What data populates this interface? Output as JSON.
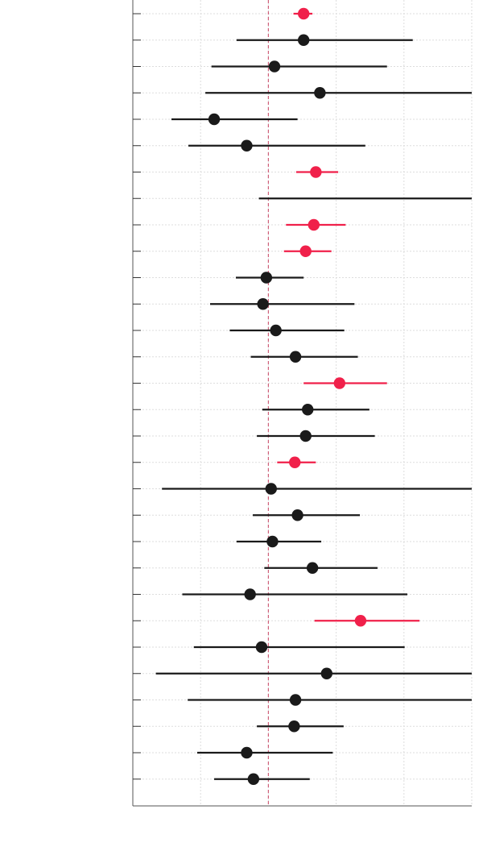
{
  "chart_data": {
    "type": "forest",
    "title": "",
    "xlabel": "",
    "ylabel": "",
    "reference_line": 0,
    "xlim": [
      -2.0,
      3.0
    ],
    "grid": true,
    "colors": {
      "significant": "#f0204a",
      "not_significant": "#1a1a1a",
      "reference": "#d0607a",
      "grid": "#dddddd",
      "axis": "#555555"
    },
    "rows": [
      {
        "estimate": 0.52,
        "lower": 0.37,
        "upper": 0.65,
        "significant": true
      },
      {
        "estimate": 0.52,
        "lower": -0.47,
        "upper": 2.13,
        "significant": false
      },
      {
        "estimate": 0.09,
        "lower": -0.84,
        "upper": 1.75,
        "significant": false
      },
      {
        "estimate": 0.76,
        "lower": -0.93,
        "upper": 3.0,
        "significant": false
      },
      {
        "estimate": -0.8,
        "lower": -1.43,
        "upper": 0.43,
        "significant": false
      },
      {
        "estimate": -0.32,
        "lower": -1.18,
        "upper": 1.43,
        "significant": false
      },
      {
        "estimate": 0.7,
        "lower": 0.41,
        "upper": 1.03,
        "significant": true
      },
      {
        "estimate": null,
        "lower": -0.14,
        "upper": 3.0,
        "significant": false
      },
      {
        "estimate": 0.67,
        "lower": 0.26,
        "upper": 1.14,
        "significant": true
      },
      {
        "estimate": 0.55,
        "lower": 0.23,
        "upper": 0.93,
        "significant": true
      },
      {
        "estimate": -0.03,
        "lower": -0.48,
        "upper": 0.52,
        "significant": false
      },
      {
        "estimate": -0.08,
        "lower": -0.86,
        "upper": 1.27,
        "significant": false
      },
      {
        "estimate": 0.11,
        "lower": -0.57,
        "upper": 1.12,
        "significant": false
      },
      {
        "estimate": 0.4,
        "lower": -0.26,
        "upper": 1.32,
        "significant": false
      },
      {
        "estimate": 1.05,
        "lower": 0.52,
        "upper": 1.75,
        "significant": true
      },
      {
        "estimate": 0.58,
        "lower": -0.09,
        "upper": 1.49,
        "significant": false
      },
      {
        "estimate": 0.55,
        "lower": -0.17,
        "upper": 1.57,
        "significant": false
      },
      {
        "estimate": 0.39,
        "lower": 0.13,
        "upper": 0.7,
        "significant": true
      },
      {
        "estimate": 0.04,
        "lower": -1.57,
        "upper": 3.0,
        "significant": false
      },
      {
        "estimate": 0.43,
        "lower": -0.23,
        "upper": 1.35,
        "significant": false
      },
      {
        "estimate": 0.06,
        "lower": -0.47,
        "upper": 0.78,
        "significant": false
      },
      {
        "estimate": 0.65,
        "lower": -0.06,
        "upper": 1.61,
        "significant": false
      },
      {
        "estimate": -0.27,
        "lower": -1.27,
        "upper": 2.05,
        "significant": false
      },
      {
        "estimate": 1.36,
        "lower": 0.68,
        "upper": 2.23,
        "significant": true
      },
      {
        "estimate": -0.1,
        "lower": -1.1,
        "upper": 2.01,
        "significant": false
      },
      {
        "estimate": 0.86,
        "lower": -1.66,
        "upper": 3.0,
        "significant": false
      },
      {
        "estimate": 0.4,
        "lower": -1.19,
        "upper": 3.0,
        "significant": false
      },
      {
        "estimate": 0.38,
        "lower": -0.17,
        "upper": 1.11,
        "significant": false
      },
      {
        "estimate": -0.32,
        "lower": -1.05,
        "upper": 0.95,
        "significant": false
      },
      {
        "estimate": -0.22,
        "lower": -0.8,
        "upper": 0.61,
        "significant": false
      }
    ]
  }
}
